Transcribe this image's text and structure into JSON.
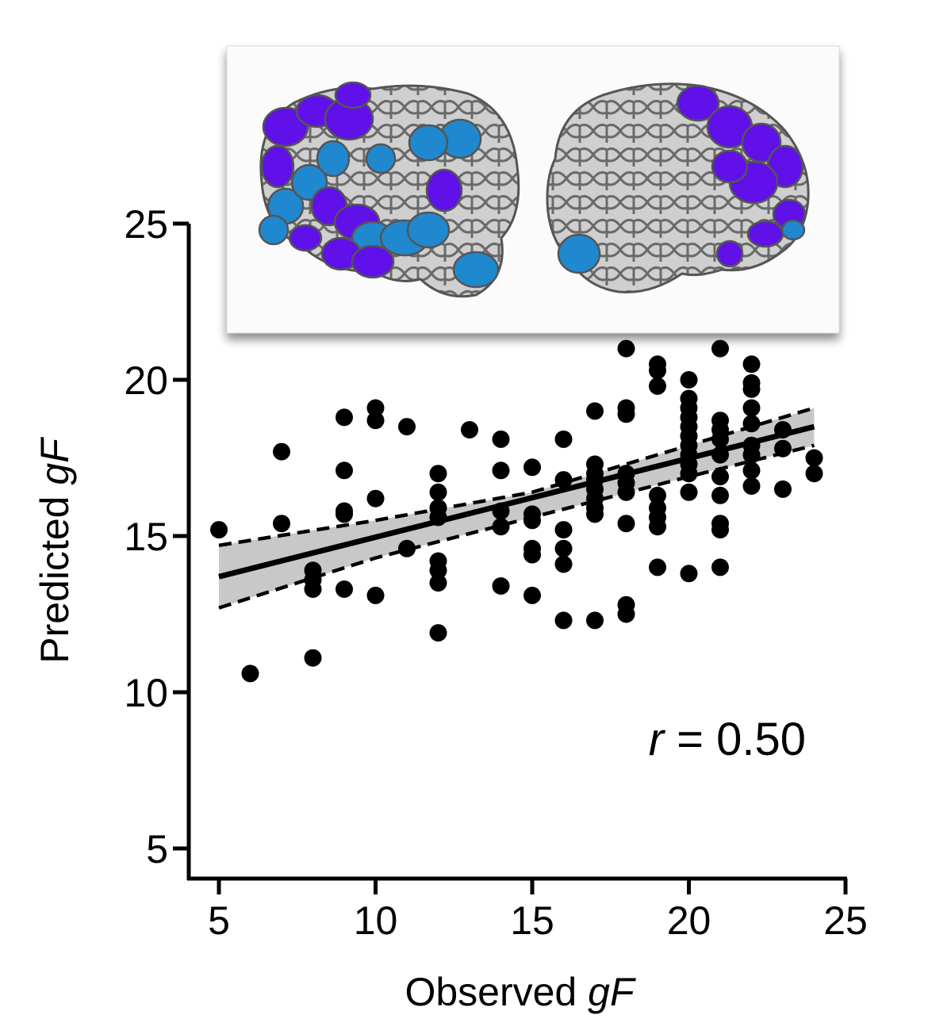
{
  "chart_data": {
    "type": "scatter",
    "xlabel": "Observed",
    "xlabel_italic": "gF",
    "ylabel": "Predicted",
    "ylabel_italic": "gF",
    "xlim": [
      4,
      25
    ],
    "ylim": [
      4,
      25
    ],
    "x_ticks": [
      5,
      10,
      15,
      20,
      25
    ],
    "y_ticks": [
      5,
      10,
      15,
      20,
      25
    ],
    "annotation_italic": "r",
    "annotation": " = 0.50",
    "fit_line": {
      "x": [
        5,
        24
      ],
      "y": [
        13.7,
        18.5
      ]
    },
    "ci_upper": {
      "x": [
        5,
        10,
        15,
        20,
        24
      ],
      "y": [
        14.7,
        15.5,
        16.4,
        17.9,
        19.1
      ]
    },
    "ci_lower": {
      "x": [
        5,
        10,
        15,
        20,
        24
      ],
      "y": [
        12.7,
        14.3,
        15.6,
        16.9,
        17.9
      ]
    },
    "points": [
      [
        5,
        15.2
      ],
      [
        6,
        10.6
      ],
      [
        7,
        17.7
      ],
      [
        7,
        15.4
      ],
      [
        8,
        13.9
      ],
      [
        8,
        13.6
      ],
      [
        8,
        13.3
      ],
      [
        8,
        11.1
      ],
      [
        9,
        18.8
      ],
      [
        9,
        17.1
      ],
      [
        9,
        15.8
      ],
      [
        9,
        15.7
      ],
      [
        9,
        13.3
      ],
      [
        10,
        19.1
      ],
      [
        10,
        18.7
      ],
      [
        10,
        16.2
      ],
      [
        10,
        13.1
      ],
      [
        11,
        18.5
      ],
      [
        11,
        14.6
      ],
      [
        12,
        17.0
      ],
      [
        12,
        16.4
      ],
      [
        12,
        15.9
      ],
      [
        12,
        15.6
      ],
      [
        12,
        14.2
      ],
      [
        12,
        13.9
      ],
      [
        12,
        13.5
      ],
      [
        12,
        11.9
      ],
      [
        13,
        18.4
      ],
      [
        14,
        18.1
      ],
      [
        14,
        17.1
      ],
      [
        14,
        15.8
      ],
      [
        14,
        15.3
      ],
      [
        14,
        13.4
      ],
      [
        15,
        17.2
      ],
      [
        15,
        15.7
      ],
      [
        15,
        15.5
      ],
      [
        15,
        14.6
      ],
      [
        15,
        14.4
      ],
      [
        15,
        13.1
      ],
      [
        16,
        18.1
      ],
      [
        16,
        16.8
      ],
      [
        16,
        15.2
      ],
      [
        16,
        14.6
      ],
      [
        16,
        14.1
      ],
      [
        16,
        12.3
      ],
      [
        17,
        19.0
      ],
      [
        17,
        17.3
      ],
      [
        17,
        17.0
      ],
      [
        17,
        16.8
      ],
      [
        17,
        16.5
      ],
      [
        17,
        16.2
      ],
      [
        17,
        15.9
      ],
      [
        17,
        15.7
      ],
      [
        17,
        12.3
      ],
      [
        18,
        21.0
      ],
      [
        18,
        19.1
      ],
      [
        18,
        18.9
      ],
      [
        18,
        17.0
      ],
      [
        18,
        16.7
      ],
      [
        18,
        16.4
      ],
      [
        18,
        15.4
      ],
      [
        18,
        12.8
      ],
      [
        18,
        12.5
      ],
      [
        19,
        20.5
      ],
      [
        19,
        20.3
      ],
      [
        19,
        19.8
      ],
      [
        19,
        16.3
      ],
      [
        19,
        15.9
      ],
      [
        19,
        15.6
      ],
      [
        19,
        15.3
      ],
      [
        19,
        14.0
      ],
      [
        20,
        20.0
      ],
      [
        20,
        19.4
      ],
      [
        20,
        19.1
      ],
      [
        20,
        18.8
      ],
      [
        20,
        18.5
      ],
      [
        20,
        18.2
      ],
      [
        20,
        17.9
      ],
      [
        20,
        17.6
      ],
      [
        20,
        17.3
      ],
      [
        20,
        17.0
      ],
      [
        20,
        16.4
      ],
      [
        20,
        13.8
      ],
      [
        21,
        21.0
      ],
      [
        21,
        18.7
      ],
      [
        21,
        18.4
      ],
      [
        21,
        18.1
      ],
      [
        21,
        17.6
      ],
      [
        21,
        16.9
      ],
      [
        21,
        16.3
      ],
      [
        21,
        15.4
      ],
      [
        21,
        15.2
      ],
      [
        21,
        14.0
      ],
      [
        22,
        20.5
      ],
      [
        22,
        19.9
      ],
      [
        22,
        19.7
      ],
      [
        22,
        19.1
      ],
      [
        22,
        18.6
      ],
      [
        22,
        17.9
      ],
      [
        22,
        17.6
      ],
      [
        22,
        17.1
      ],
      [
        22,
        16.6
      ],
      [
        23,
        18.4
      ],
      [
        23,
        17.8
      ],
      [
        23,
        16.5
      ],
      [
        24,
        17.5
      ],
      [
        24,
        17.0
      ]
    ]
  },
  "brain_inset": {
    "colors": {
      "purple": "#6010e8",
      "blue": "#2088cf",
      "gray": "#c8c8c8",
      "outline": "#555555"
    }
  }
}
